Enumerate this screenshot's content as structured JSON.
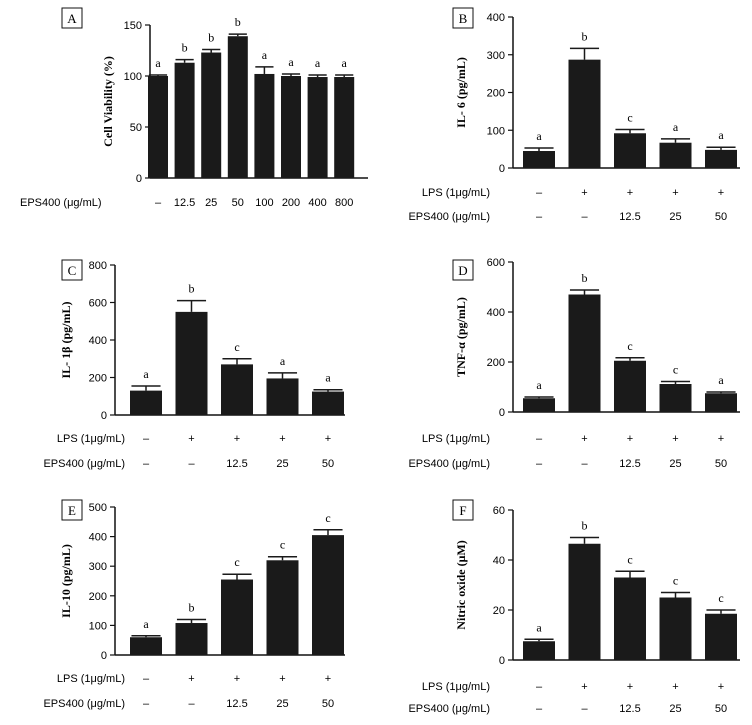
{
  "chart_data": [
    {
      "panel_label": "A",
      "type": "bar",
      "ylabel": "Cell Viability (%)",
      "ylim": [
        0,
        150
      ],
      "yticks": [
        "0",
        "50",
        "100",
        "150"
      ],
      "rows": [
        {
          "label": "EPS400 (μg/mL)",
          "values": [
            "–",
            "12.5",
            "25",
            "50",
            "100",
            "200",
            "400",
            "800"
          ]
        }
      ],
      "values": [
        100,
        113,
        123,
        139,
        102,
        100,
        99,
        99
      ],
      "errors": [
        1,
        3,
        3,
        2,
        7,
        2,
        2,
        2
      ],
      "letters": [
        "a",
        "b",
        "b",
        "b",
        "a",
        "a",
        "a",
        "a"
      ]
    },
    {
      "panel_label": "B",
      "type": "bar",
      "ylabel": "IL- 6 (pg/mL)",
      "ylim": [
        0,
        400
      ],
      "yticks": [
        "0",
        "100",
        "200",
        "300",
        "400"
      ],
      "rows": [
        {
          "label": "LPS (1μg/mL)",
          "values": [
            "–",
            "+",
            "+",
            "+",
            "+"
          ]
        },
        {
          "label": "EPS400 (μg/mL)",
          "values": [
            "–",
            "–",
            "12.5",
            "25",
            "50"
          ]
        }
      ],
      "values": [
        45,
        287,
        92,
        67,
        48
      ],
      "errors": [
        8,
        30,
        10,
        10,
        7
      ],
      "letters": [
        "a",
        "b",
        "c",
        "a",
        "a"
      ]
    },
    {
      "panel_label": "C",
      "type": "bar",
      "ylabel": "IL- 1β (pg/mL)",
      "ylim": [
        0,
        800
      ],
      "yticks": [
        "0",
        "200",
        "400",
        "600",
        "800"
      ],
      "rows": [
        {
          "label": "LPS (1μg/mL)",
          "values": [
            "–",
            "+",
            "+",
            "+",
            "+"
          ]
        },
        {
          "label": "EPS400 (μg/mL)",
          "values": [
            "–",
            "–",
            "12.5",
            "25",
            "50"
          ]
        }
      ],
      "values": [
        130,
        550,
        270,
        195,
        125
      ],
      "errors": [
        25,
        60,
        30,
        30,
        10
      ],
      "letters": [
        "a",
        "b",
        "c",
        "a",
        "a"
      ]
    },
    {
      "panel_label": "D",
      "type": "bar",
      "ylabel": "TNF-α (pg/mL)",
      "ylim": [
        0,
        600
      ],
      "yticks": [
        "0",
        "200",
        "400",
        "600"
      ],
      "rows": [
        {
          "label": "LPS (1μg/mL)",
          "values": [
            "–",
            "+",
            "+",
            "+",
            "+"
          ]
        },
        {
          "label": "EPS400 (μg/mL)",
          "values": [
            "–",
            "–",
            "12.5",
            "25",
            "50"
          ]
        }
      ],
      "values": [
        55,
        470,
        205,
        112,
        75
      ],
      "errors": [
        5,
        18,
        12,
        10,
        5
      ],
      "letters": [
        "a",
        "b",
        "c",
        "c",
        "a"
      ]
    },
    {
      "panel_label": "E",
      "type": "bar",
      "ylabel": "IL-10 (pg/mL)",
      "ylim": [
        0,
        500
      ],
      "yticks": [
        "0",
        "100",
        "200",
        "300",
        "400",
        "500"
      ],
      "rows": [
        {
          "label": "LPS (1μg/mL)",
          "values": [
            "–",
            "+",
            "+",
            "+",
            "+"
          ]
        },
        {
          "label": "EPS400 (μg/mL)",
          "values": [
            "–",
            "–",
            "12.5",
            "25",
            "50"
          ]
        }
      ],
      "values": [
        60,
        108,
        255,
        320,
        405
      ],
      "errors": [
        5,
        12,
        18,
        12,
        18
      ],
      "letters": [
        "a",
        "b",
        "c",
        "c",
        "c"
      ]
    },
    {
      "panel_label": "F",
      "type": "bar",
      "ylabel": "Nitric oxide (μM)",
      "ylim": [
        0,
        60
      ],
      "yticks": [
        "0",
        "20",
        "40",
        "60"
      ],
      "rows": [
        {
          "label": "LPS (1μg/mL)",
          "values": [
            "–",
            "+",
            "+",
            "+",
            "+"
          ]
        },
        {
          "label": "EPS400 (μg/mL)",
          "values": [
            "–",
            "–",
            "12.5",
            "25",
            "50"
          ]
        }
      ],
      "values": [
        7.5,
        46.5,
        33,
        25,
        18.5
      ],
      "errors": [
        0.8,
        2.5,
        2.5,
        2,
        1.5
      ],
      "letters": [
        "a",
        "b",
        "c",
        "c",
        "c"
      ]
    }
  ]
}
